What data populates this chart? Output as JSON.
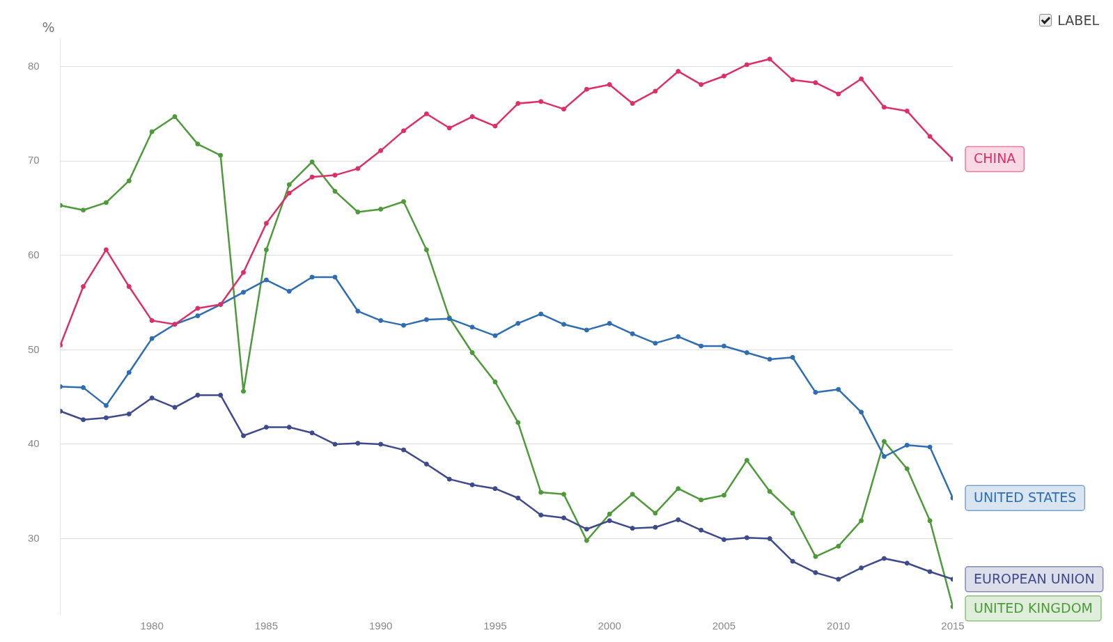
{
  "chart_data": {
    "type": "line",
    "ylabel": "%",
    "x": [
      1976,
      1977,
      1978,
      1979,
      1980,
      1981,
      1982,
      1983,
      1984,
      1985,
      1986,
      1987,
      1988,
      1989,
      1990,
      1991,
      1992,
      1993,
      1994,
      1995,
      1996,
      1997,
      1998,
      1999,
      2000,
      2001,
      2002,
      2003,
      2004,
      2005,
      2006,
      2007,
      2008,
      2009,
      2010,
      2011,
      2012,
      2013,
      2014,
      2015
    ],
    "xlim": [
      1976,
      2015
    ],
    "xticks": [
      1980,
      1985,
      1990,
      1995,
      2000,
      2005,
      2010,
      2015
    ],
    "ylim": [
      22,
      83
    ],
    "yticks": [
      30,
      40,
      50,
      60,
      70,
      80
    ],
    "grid": "y",
    "legend": "right",
    "marker": "circle",
    "line_style": "solid",
    "annotations": [
      "LABEL"
    ],
    "series": [
      {
        "name": "CHINA",
        "color": "#dc2f67",
        "values": [
          50.5,
          56.7,
          60.6,
          56.7,
          53.1,
          52.7,
          54.4,
          54.8,
          58.2,
          63.4,
          66.6,
          68.3,
          68.5,
          69.2,
          71.1,
          73.2,
          75.0,
          73.5,
          74.7,
          73.7,
          76.1,
          76.3,
          75.5,
          77.6,
          78.1,
          76.1,
          77.4,
          79.5,
          78.1,
          79.0,
          80.2,
          80.8,
          78.6,
          78.3,
          77.1,
          78.7,
          75.7,
          75.3,
          72.6,
          70.2
        ]
      },
      {
        "name": "UNITED STATES",
        "color": "#2f6db3",
        "values": [
          46.1,
          46.0,
          44.1,
          47.6,
          51.2,
          52.7,
          53.6,
          54.8,
          56.1,
          57.4,
          56.2,
          57.7,
          57.7,
          54.1,
          53.1,
          52.6,
          53.2,
          53.3,
          52.4,
          51.5,
          52.8,
          53.8,
          52.7,
          52.1,
          52.8,
          51.7,
          50.7,
          51.4,
          50.4,
          50.4,
          49.7,
          49.0,
          49.2,
          45.5,
          45.8,
          43.4,
          38.7,
          39.9,
          39.7,
          34.3
        ]
      },
      {
        "name": "EUROPEAN UNION",
        "color": "#3e4a8c",
        "values": [
          43.5,
          42.6,
          42.8,
          43.2,
          44.9,
          43.9,
          45.2,
          45.2,
          40.9,
          41.8,
          41.8,
          41.2,
          40.0,
          40.1,
          40.0,
          39.4,
          37.9,
          36.3,
          35.7,
          35.3,
          34.3,
          32.5,
          32.2,
          31.0,
          31.9,
          31.1,
          31.2,
          32.0,
          30.9,
          29.9,
          30.1,
          30.0,
          27.6,
          26.4,
          25.7,
          26.9,
          27.9,
          27.4,
          26.5,
          25.7
        ]
      },
      {
        "name": "UNITED KINGDOM",
        "color": "#4e9a3a",
        "values": [
          65.3,
          64.8,
          65.6,
          67.9,
          73.1,
          74.7,
          71.8,
          70.6,
          45.6,
          60.6,
          67.5,
          69.9,
          66.8,
          64.6,
          64.9,
          65.7,
          60.6,
          53.4,
          49.7,
          46.6,
          42.3,
          34.9,
          34.7,
          29.8,
          32.6,
          34.7,
          32.7,
          35.3,
          34.1,
          34.6,
          38.3,
          35.0,
          32.7,
          28.1,
          29.2,
          31.9,
          40.3,
          37.4,
          31.9,
          22.8
        ]
      }
    ]
  }
}
